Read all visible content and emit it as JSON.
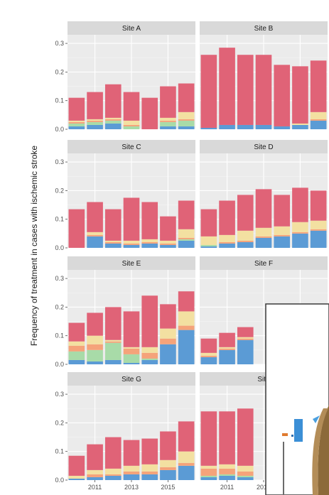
{
  "chart_data": {
    "type": "bar",
    "stacked": true,
    "facet_layout": "4 rows x 2 columns",
    "ylabel": "Frequency of treatment in cases with ischemic stroke",
    "ylim": [
      0,
      0.33
    ],
    "y_ticks": [
      "0.0",
      "0.1",
      "0.2",
      "0.3"
    ],
    "y_tick_values": [
      0,
      0.1,
      0.2,
      0.3
    ],
    "x": [
      2010,
      2011,
      2012,
      2013,
      2014,
      2015,
      2016
    ],
    "x_tick_labels": [
      "2011",
      "2013",
      "2015"
    ],
    "x_tick_values": [
      2011,
      2013,
      2015
    ],
    "grid": true,
    "stack_colors": [
      "#5b9bd5",
      "#a8dba8",
      "#f5a37a",
      "#f3e0a1",
      "#e06377"
    ],
    "panels": [
      {
        "title": "Site A",
        "series": [
          {
            "values": [
              0.01,
              0.015,
              0.02,
              0.0,
              0.0,
              0.01,
              0.01
            ]
          },
          {
            "values": [
              0.01,
              0.01,
              0.01,
              0.01,
              0.0,
              0.015,
              0.02
            ]
          },
          {
            "values": [
              0.005,
              0.005,
              0.005,
              0.005,
              0.0,
              0.005,
              0.005
            ]
          },
          {
            "values": [
              0.005,
              0.005,
              0.005,
              0.015,
              0.0,
              0.01,
              0.025
            ]
          },
          {
            "values": [
              0.08,
              0.095,
              0.117,
              0.1,
              0.11,
              0.11,
              0.1
            ]
          }
        ]
      },
      {
        "title": "Site B",
        "series": [
          {
            "values": [
              0.005,
              0.015,
              0.015,
              0.015,
              0.01,
              0.015,
              0.03
            ]
          },
          {
            "values": [
              0.0,
              0.0,
              0.0,
              0.0,
              0.0,
              0.0,
              0.0
            ]
          },
          {
            "values": [
              0.0,
              0.0,
              0.0,
              0.0,
              0.0,
              0.0,
              0.005
            ]
          },
          {
            "values": [
              0.0,
              0.0,
              0.0,
              0.0,
              0.0,
              0.005,
              0.025
            ]
          },
          {
            "values": [
              0.255,
              0.27,
              0.245,
              0.245,
              0.215,
              0.2,
              0.18
            ]
          }
        ]
      },
      {
        "title": "Site C",
        "series": [
          {
            "values": [
              0.0,
              0.04,
              0.015,
              0.01,
              0.015,
              0.01,
              0.025
            ]
          },
          {
            "values": [
              0.0,
              0.0,
              0.0,
              0.0,
              0.0,
              0.0,
              0.005
            ]
          },
          {
            "values": [
              0.0,
              0.005,
              0.005,
              0.005,
              0.005,
              0.005,
              0.005
            ]
          },
          {
            "values": [
              0.0,
              0.01,
              0.005,
              0.01,
              0.01,
              0.01,
              0.03
            ]
          },
          {
            "values": [
              0.135,
              0.105,
              0.11,
              0.15,
              0.13,
              0.085,
              0.1
            ]
          }
        ]
      },
      {
        "title": "Site D",
        "series": [
          {
            "values": [
              0.005,
              0.015,
              0.02,
              0.035,
              0.04,
              0.05,
              0.06
            ]
          },
          {
            "values": [
              0.005,
              0.0,
              0.0,
              0.0,
              0.0,
              0.0,
              0.0
            ]
          },
          {
            "values": [
              0.0,
              0.005,
              0.005,
              0.005,
              0.005,
              0.005,
              0.005
            ]
          },
          {
            "values": [
              0.03,
              0.025,
              0.035,
              0.03,
              0.03,
              0.035,
              0.03
            ]
          },
          {
            "values": [
              0.095,
              0.12,
              0.125,
              0.135,
              0.11,
              0.12,
              0.105
            ]
          }
        ]
      },
      {
        "title": "Site E",
        "series": [
          {
            "values": [
              0.015,
              0.01,
              0.015,
              0.005,
              0.015,
              0.07,
              0.12
            ]
          },
          {
            "values": [
              0.03,
              0.04,
              0.06,
              0.03,
              0.005,
              0.0,
              0.0
            ]
          },
          {
            "values": [
              0.02,
              0.02,
              0.005,
              0.02,
              0.02,
              0.02,
              0.015
            ]
          },
          {
            "values": [
              0.015,
              0.03,
              0.005,
              0.005,
              0.02,
              0.035,
              0.05
            ]
          },
          {
            "values": [
              0.065,
              0.08,
              0.115,
              0.125,
              0.18,
              0.085,
              0.07
            ]
          }
        ]
      },
      {
        "title": "Site F",
        "series": [
          {
            "values": [
              0.025,
              0.05,
              0.085
            ]
          },
          {
            "values": [
              0.0,
              0.0,
              0.0
            ]
          },
          {
            "values": [
              0.005,
              0.005,
              0.005
            ]
          },
          {
            "values": [
              0.01,
              0.005,
              0.005
            ]
          },
          {
            "values": [
              0.05,
              0.05,
              0.035
            ]
          }
        ]
      },
      {
        "title": "Site G",
        "series": [
          {
            "values": [
              0.005,
              0.01,
              0.015,
              0.02,
              0.02,
              0.035,
              0.05
            ]
          },
          {
            "values": [
              0.0,
              0.0,
              0.0,
              0.0,
              0.0,
              0.0,
              0.0
            ]
          },
          {
            "values": [
              0.0,
              0.01,
              0.005,
              0.01,
              0.01,
              0.01,
              0.01
            ]
          },
          {
            "values": [
              0.01,
              0.015,
              0.02,
              0.02,
              0.025,
              0.025,
              0.04
            ]
          },
          {
            "values": [
              0.07,
              0.09,
              0.11,
              0.09,
              0.09,
              0.1,
              0.105
            ]
          }
        ]
      },
      {
        "title": "Site",
        "series": [
          {
            "values": [
              0.01,
              0.015,
              0.01
            ]
          },
          {
            "values": [
              0.005,
              0.005,
              0.005
            ]
          },
          {
            "values": [
              0.025,
              0.02,
              0.015
            ]
          },
          {
            "values": [
              0.01,
              0.015,
              0.02
            ]
          },
          {
            "values": [
              0.19,
              0.185,
              0.2
            ]
          }
        ]
      }
    ]
  }
}
